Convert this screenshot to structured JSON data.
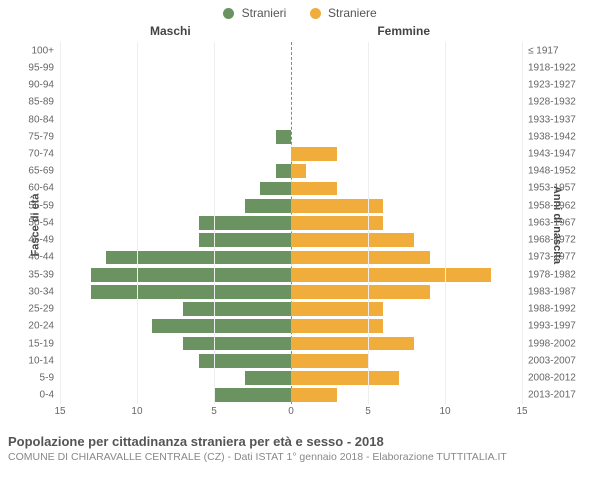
{
  "legend": {
    "male": "Stranieri",
    "female": "Straniere"
  },
  "colors": {
    "male": "#6b9362",
    "female": "#f0ad3b",
    "grid": "#eeeeee",
    "center_line": "#888888",
    "background": "#ffffff"
  },
  "column_titles": {
    "left": "Maschi",
    "right": "Femmine"
  },
  "axis_titles": {
    "left": "Fasce di età",
    "right": "Anni di nascita"
  },
  "chart": {
    "type": "population-pyramid",
    "x_max": 15,
    "x_ticks": [
      15,
      10,
      5,
      0,
      5,
      10,
      15
    ],
    "label_fontsize": 10,
    "bar_height_pct": 80
  },
  "rows": [
    {
      "age": "100+",
      "year": "≤ 1917",
      "m": 0,
      "f": 0
    },
    {
      "age": "95-99",
      "year": "1918-1922",
      "m": 0,
      "f": 0
    },
    {
      "age": "90-94",
      "year": "1923-1927",
      "m": 0,
      "f": 0
    },
    {
      "age": "85-89",
      "year": "1928-1932",
      "m": 0,
      "f": 0
    },
    {
      "age": "80-84",
      "year": "1933-1937",
      "m": 0,
      "f": 0
    },
    {
      "age": "75-79",
      "year": "1938-1942",
      "m": 1,
      "f": 0
    },
    {
      "age": "70-74",
      "year": "1943-1947",
      "m": 0,
      "f": 3
    },
    {
      "age": "65-69",
      "year": "1948-1952",
      "m": 1,
      "f": 1
    },
    {
      "age": "60-64",
      "year": "1953-1957",
      "m": 2,
      "f": 3
    },
    {
      "age": "55-59",
      "year": "1958-1962",
      "m": 3,
      "f": 6
    },
    {
      "age": "50-54",
      "year": "1963-1967",
      "m": 6,
      "f": 6
    },
    {
      "age": "45-49",
      "year": "1968-1972",
      "m": 6,
      "f": 8
    },
    {
      "age": "40-44",
      "year": "1973-1977",
      "m": 12,
      "f": 9
    },
    {
      "age": "35-39",
      "year": "1978-1982",
      "m": 13,
      "f": 13
    },
    {
      "age": "30-34",
      "year": "1983-1987",
      "m": 13,
      "f": 9
    },
    {
      "age": "25-29",
      "year": "1988-1992",
      "m": 7,
      "f": 6
    },
    {
      "age": "20-24",
      "year": "1993-1997",
      "m": 9,
      "f": 6
    },
    {
      "age": "15-19",
      "year": "1998-2002",
      "m": 7,
      "f": 8
    },
    {
      "age": "10-14",
      "year": "2003-2007",
      "m": 6,
      "f": 5
    },
    {
      "age": "5-9",
      "year": "2008-2012",
      "m": 3,
      "f": 7
    },
    {
      "age": "0-4",
      "year": "2013-2017",
      "m": 5,
      "f": 3
    }
  ],
  "caption": {
    "title": "Popolazione per cittadinanza straniera per età e sesso - 2018",
    "subtitle": "COMUNE DI CHIARAVALLE CENTRALE (CZ) - Dati ISTAT 1° gennaio 2018 - Elaborazione TUTTITALIA.IT"
  }
}
